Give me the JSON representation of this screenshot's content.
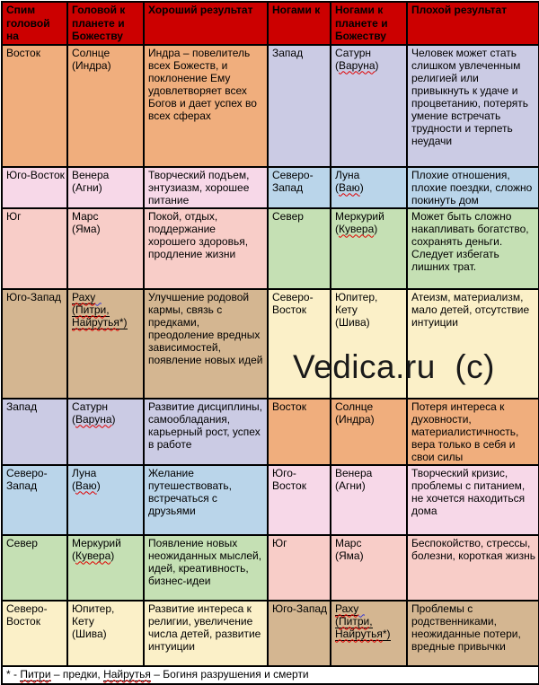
{
  "colors": {
    "header_bg": "#CC0000",
    "border": "#000000",
    "misspell_wavy": "#E00000",
    "grammar_wavy": "#3A3AD0",
    "watermark_text": "#1A1A1A",
    "footnote_bg": "#FFFFFF",
    "direction_colors": {
      "east_peach": "#F0AE7D",
      "west_lavender": "#CBCBE4",
      "southeast_pink": "#F7D8E8",
      "northwest_blue": "#BAD5EA",
      "south_salmon": "#F8CDC8",
      "north_green": "#C5E0B4",
      "southwest_tan": "#D4B691",
      "northeast_cream": "#FBF0C8"
    }
  },
  "watermark": "Vedica.ru  (c)",
  "table": {
    "header": [
      "Спим головой на",
      "Головой к планете и Божеству",
      "Хороший результат",
      "Ногами к",
      "Ногами к планете и Божеству",
      "Плохой результат"
    ],
    "rows": [
      {
        "head_direction": "Восток",
        "head_planet": {
          "lines": [
            [
              {
                "t": "Солнце"
              }
            ],
            [
              {
                "t": "(Индра)"
              }
            ]
          ]
        },
        "good_result": "Индра – повелитель всех Божеств, и поклонение Ему удовлетворяет всех Богов и дает успех во всех сферах",
        "feet_direction": "Запад",
        "feet_planet": {
          "lines": [
            [
              {
                "t": "Сатурн"
              }
            ],
            [
              {
                "t": "("
              },
              {
                "t": "Варуна",
                "sp": 1
              },
              {
                "t": ")"
              }
            ]
          ]
        },
        "bad_result": "Человек может стать слишком увлеченным религией или привыкнуть к удаче и процветанию, потерять умение встречать трудности и терпеть неудачи",
        "left_color": "#F0AE7D",
        "right_color": "#CBCBE4"
      },
      {
        "head_direction": "Юго-Восток",
        "head_planet": {
          "lines": [
            [
              {
                "t": "Венера"
              }
            ],
            [
              {
                "t": "(Агни)"
              }
            ]
          ]
        },
        "good_result": "Творческий подъем, энтузиазм, хорошее питание",
        "feet_direction": "Северо-Запад",
        "feet_planet": {
          "lines": [
            [
              {
                "t": "Луна"
              }
            ],
            [
              {
                "t": "("
              },
              {
                "t": "Ваю",
                "sp": 1
              },
              {
                "t": ")"
              }
            ]
          ]
        },
        "bad_result": "Плохие отношения, плохие поездки, сложно покинуть дом",
        "left_color": "#F7D8E8",
        "right_color": "#BAD5EA"
      },
      {
        "head_direction": "Юг",
        "head_planet": {
          "lines": [
            [
              {
                "t": "Марс"
              }
            ],
            [
              {
                "t": "(Яма)"
              }
            ]
          ]
        },
        "good_result": "Покой, отдых, поддержание хорошего здоровья, продление жизни",
        "feet_direction": "Север",
        "feet_planet": {
          "lines": [
            [
              {
                "t": "Меркурий"
              }
            ],
            [
              {
                "t": "("
              },
              {
                "t": "Кувера",
                "sp": 1
              },
              {
                "t": ")"
              }
            ]
          ]
        },
        "bad_result": "Может быть сложно накапливать богатство, сохранять деньги. Следует избегать лишних трат.",
        "left_color": "#F8CDC8",
        "right_color": "#C5E0B4"
      },
      {
        "head_direction": "Юго-Запад",
        "head_planet": {
          "lines": [
            [
              {
                "t": "Раху",
                "sp": 1,
                "u": 1
              },
              {
                "t": "  ",
                "g": 1
              }
            ],
            [
              {
                "t": "(",
                "u": 1
              },
              {
                "t": "Питри",
                "sp": 1,
                "u": 1
              },
              {
                "t": ",",
                "u": 1
              }
            ],
            [
              {
                "t": "Найрутья",
                "sp": 1,
                "u": 1
              },
              {
                "t": "*)",
                "u": 1
              }
            ]
          ]
        },
        "good_result": "Улучшение родовой кармы, связь с предками, преодоление вредных зависимостей, появление новых идей",
        "feet_direction": "Северо-Восток",
        "feet_planet": {
          "lines": [
            [
              {
                "t": "Юпитер,"
              }
            ],
            [
              {
                "t": "Кету"
              }
            ],
            [
              {
                "t": "(Шива)"
              }
            ]
          ]
        },
        "bad_result": "Атеизм, материализм, мало детей, отсутствие интуиции",
        "left_color": "#D4B691",
        "right_color": "#FBF0C8"
      },
      {
        "head_direction": "Запад",
        "head_planet": {
          "lines": [
            [
              {
                "t": "Сатурн"
              }
            ],
            [
              {
                "t": "("
              },
              {
                "t": "Варуна",
                "sp": 1
              },
              {
                "t": ")"
              }
            ]
          ]
        },
        "good_result": "Развитие дисциплины, самообладания, карьерный рост, успех в работе",
        "feet_direction": "Восток",
        "feet_planet": {
          "lines": [
            [
              {
                "t": "Солнце"
              }
            ],
            [
              {
                "t": "(Индра)"
              }
            ]
          ]
        },
        "bad_result": "Потеря интереса к духовности, материалистичность, вера только в себя и свои силы",
        "left_color": "#CBCBE4",
        "right_color": "#F0AE7D"
      },
      {
        "head_direction": "Северо-Запад",
        "head_planet": {
          "lines": [
            [
              {
                "t": "Луна"
              }
            ],
            [
              {
                "t": "("
              },
              {
                "t": "Ваю",
                "sp": 1
              },
              {
                "t": ")"
              }
            ]
          ]
        },
        "good_result": "Желание путешествовать, встречаться с друзьями",
        "feet_direction": "Юго-Восток",
        "feet_planet": {
          "lines": [
            [
              {
                "t": "Венера"
              }
            ],
            [
              {
                "t": "(Агни)"
              }
            ]
          ]
        },
        "bad_result": "Творческий кризис, проблемы с питанием, не хочется находиться дома",
        "left_color": "#BAD5EA",
        "right_color": "#F7D8E8"
      },
      {
        "head_direction": "Север",
        "head_planet": {
          "lines": [
            [
              {
                "t": "Меркурий"
              }
            ],
            [
              {
                "t": "("
              },
              {
                "t": "Кувера",
                "sp": 1
              },
              {
                "t": ")"
              }
            ]
          ]
        },
        "good_result": "Появление новых неожиданных мыслей, идей, креативность, бизнес-идеи",
        "feet_direction": "Юг",
        "feet_planet": {
          "lines": [
            [
              {
                "t": "Марс"
              }
            ],
            [
              {
                "t": "(Яма)"
              }
            ]
          ]
        },
        "bad_result": "Беспокойство, стрессы, болезни, короткая жизнь",
        "left_color": "#C5E0B4",
        "right_color": "#F8CDC8"
      },
      {
        "head_direction": "Северо-Восток",
        "head_planet": {
          "lines": [
            [
              {
                "t": "Юпитер,"
              }
            ],
            [
              {
                "t": "Кету"
              }
            ],
            [
              {
                "t": "(Шива)"
              }
            ]
          ]
        },
        "good_result": "Развитие интереса к религии, увеличение числа детей, развитие интуиции",
        "feet_direction": "Юго-Запад",
        "feet_planet": {
          "lines": [
            [
              {
                "t": "Раху",
                "sp": 1,
                "u": 1
              },
              {
                "t": "  ",
                "g": 1
              }
            ],
            [
              {
                "t": "(",
                "u": 1
              },
              {
                "t": "Питри",
                "sp": 1,
                "u": 1
              },
              {
                "t": ",",
                "u": 1
              }
            ],
            [
              {
                "t": "Найрутья",
                "sp": 1,
                "u": 1
              },
              {
                "t": "*)",
                "u": 1
              }
            ]
          ]
        },
        "bad_result": "Проблемы с родственниками, неожиданные потери, вредные привычки",
        "left_color": "#FBF0C8",
        "right_color": "#D4B691"
      }
    ]
  },
  "footnote": {
    "segments": [
      {
        "t": "* - "
      },
      {
        "t": "Питри",
        "u": 1,
        "sp": 1
      },
      {
        "t": " – предки, "
      },
      {
        "t": "Найрутья",
        "u": 1,
        "sp": 1
      },
      {
        "t": " – Богиня разрушения и смерти"
      }
    ]
  }
}
